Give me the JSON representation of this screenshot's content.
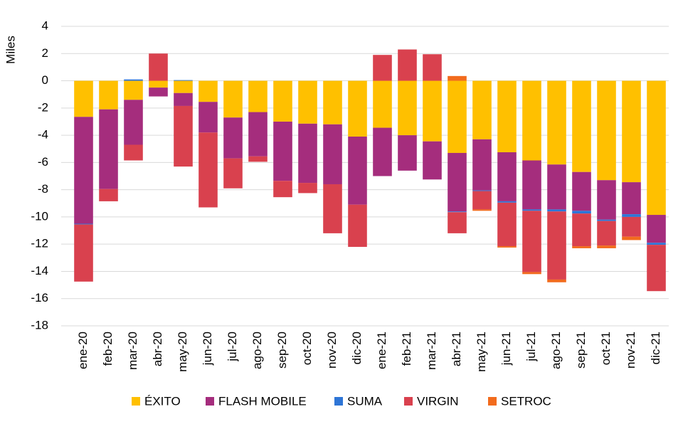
{
  "chart_data": {
    "type": "stacked_bar",
    "y_label": "Miles",
    "categories": [
      "ene-20",
      "feb-20",
      "mar-20",
      "abr-20",
      "may-20",
      "jun-20",
      "jul-20",
      "ago-20",
      "sep-20",
      "oct-20",
      "nov-20",
      "dic-20",
      "ene-21",
      "feb-21",
      "mar-21",
      "abr-21",
      "may-21",
      "jun-21",
      "jul-21",
      "ago-21",
      "sep-21",
      "oct-21",
      "nov-21",
      "dic-21"
    ],
    "series": [
      {
        "name": "ÉXITO",
        "color": "#ffc000",
        "values": [
          -2.65,
          -2.1,
          -1.4,
          -0.5,
          -0.9,
          -1.55,
          -2.7,
          -2.3,
          -3.0,
          -3.15,
          -3.2,
          -4.1,
          -3.45,
          -4.0,
          -4.45,
          -5.3,
          -4.3,
          -5.25,
          -5.85,
          -6.15,
          -6.7,
          -7.3,
          -7.45,
          -9.85
        ]
      },
      {
        "name": "FLASH MOBILE",
        "color": "#a52d7d",
        "values": [
          -7.85,
          -5.85,
          -3.3,
          -0.65,
          -0.95,
          -2.25,
          -3.0,
          -3.25,
          -4.35,
          -4.35,
          -4.4,
          -5.0,
          -3.55,
          -2.6,
          -2.8,
          -4.3,
          -3.75,
          -3.6,
          -3.6,
          -3.3,
          -2.85,
          -2.9,
          -2.35,
          -2.05
        ]
      },
      {
        "name": "SUMA",
        "color": "#2e75d6",
        "values": [
          -0.05,
          0,
          0.1,
          0,
          0.05,
          0,
          0,
          0,
          0,
          0,
          0,
          0,
          0,
          0,
          0,
          -0.05,
          -0.05,
          -0.1,
          -0.1,
          -0.15,
          -0.2,
          -0.1,
          -0.2,
          -0.15
        ]
      },
      {
        "name": "VIRGIN",
        "color": "#d9414e",
        "values": [
          -4.2,
          -0.9,
          -1.15,
          2.0,
          -4.45,
          -5.5,
          -2.2,
          -0.4,
          -1.2,
          -0.75,
          -3.6,
          -3.1,
          1.9,
          2.3,
          1.95,
          -1.55,
          -1.35,
          -3.2,
          -4.5,
          -5.0,
          -2.4,
          -1.8,
          -1.45,
          -3.4
        ]
      },
      {
        "name": "SETROC",
        "color": "#f26b1d",
        "values": [
          0,
          0,
          0,
          0,
          0,
          0,
          0,
          0,
          0,
          0,
          0,
          0,
          0,
          0,
          0,
          0.35,
          -0.1,
          -0.1,
          -0.15,
          -0.2,
          -0.15,
          -0.2,
          -0.25,
          0
        ]
      }
    ],
    "ylim": [
      -18,
      4
    ],
    "yticks": [
      -18,
      -16,
      -14,
      -12,
      -10,
      -8,
      -6,
      -4,
      -2,
      0,
      2,
      4
    ],
    "grid": true,
    "legend": "bottom"
  }
}
